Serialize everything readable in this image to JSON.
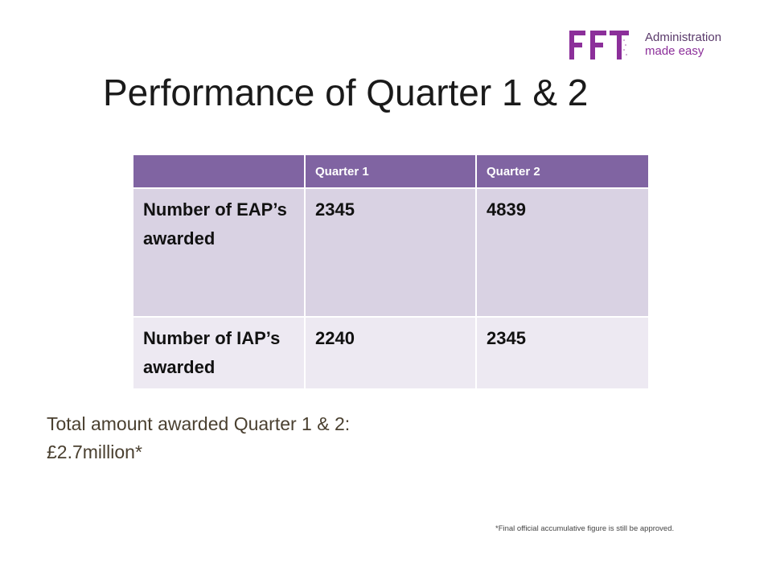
{
  "logo": {
    "letters": "FFT",
    "tagline_line1": "Administration",
    "tagline_line2": "made easy",
    "color": "#8c2f9a"
  },
  "title": "Performance of Quarter 1 & 2",
  "table": {
    "header_color": "#8064a2",
    "row_color_odd": "#d9d2e3",
    "row_color_even": "#ede9f2",
    "headers": [
      "",
      "Quarter 1",
      "Quarter 2"
    ],
    "rows": [
      {
        "label": "Number of EAP’s awarded",
        "q1": "2345",
        "q2": "4839"
      },
      {
        "label": "Number of IAP’s awarded",
        "q1": "2240",
        "q2": "2345"
      }
    ]
  },
  "summary": {
    "line1": "Total amount awarded Quarter 1 & 2:",
    "line2": "£2.7million*"
  },
  "footnote": "*Final official accumulative figure is still be approved."
}
